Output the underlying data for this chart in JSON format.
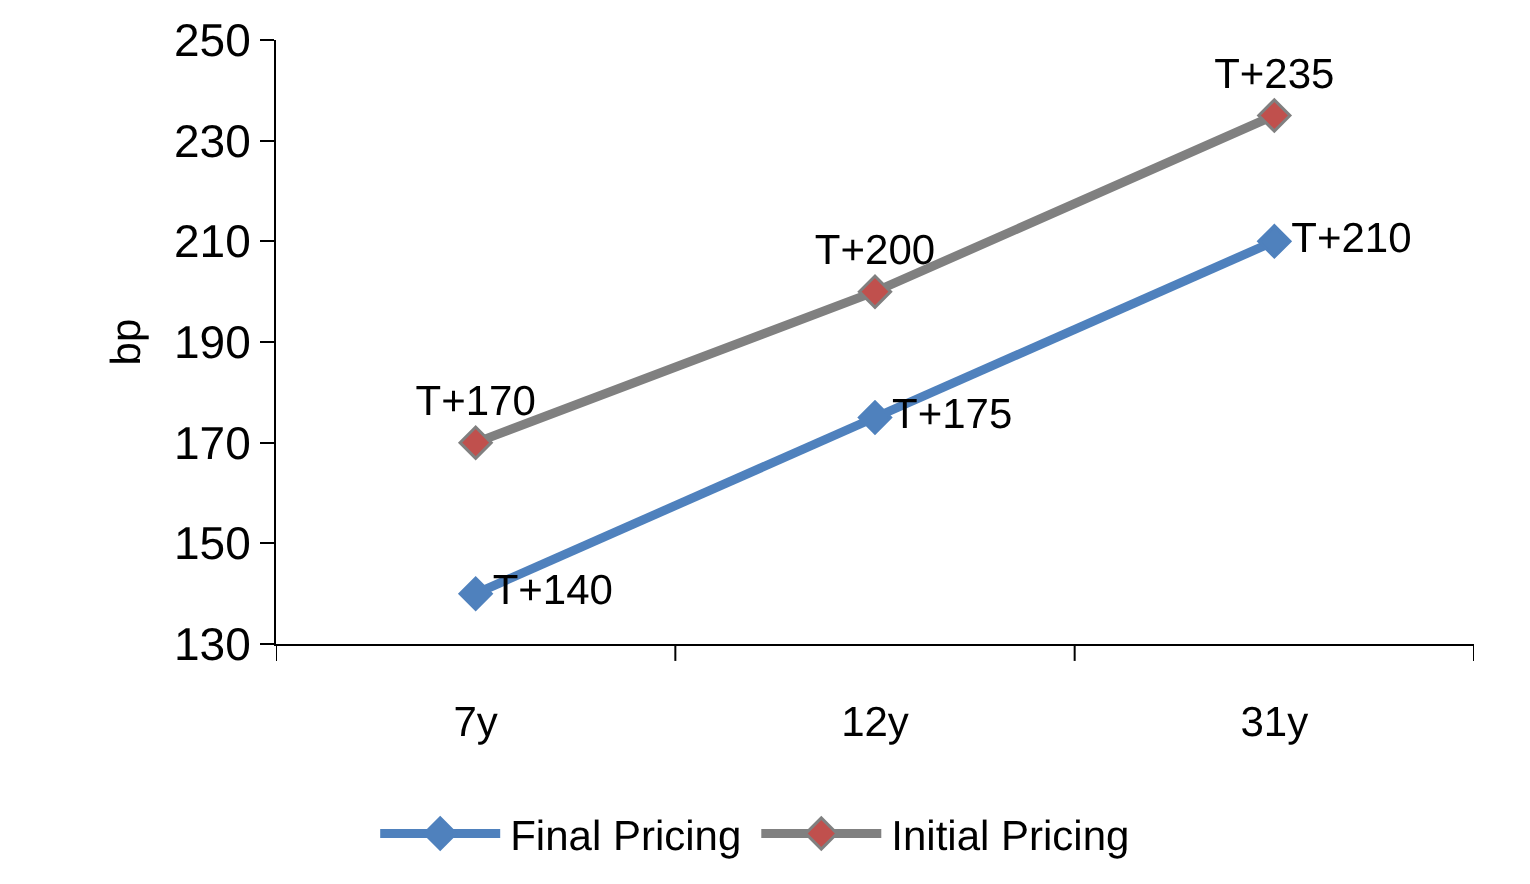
{
  "chart_data": {
    "type": "line",
    "ylabel": "bp",
    "categories": [
      "7y",
      "12y",
      "31y"
    ],
    "series": [
      {
        "name": "Final Pricing",
        "color": "#4f81bd",
        "values": [
          140,
          175,
          210
        ],
        "value_labels": [
          "T+140",
          "T+175",
          "T+210"
        ]
      },
      {
        "name": "Initial Pricing",
        "color": "#808080",
        "colors": [
          "#c0504d",
          "#c0504d",
          "#c0504d"
        ],
        "values": [
          170,
          200,
          235
        ],
        "value_labels": [
          "T+170",
          "T+200",
          "T+235"
        ]
      }
    ],
    "ylim": [
      130,
      250
    ],
    "yticks": [
      130,
      150,
      170,
      190,
      210,
      230,
      250
    ],
    "grid": false,
    "legend": "bottom",
    "marker": "diamond",
    "line_style": "solid"
  }
}
